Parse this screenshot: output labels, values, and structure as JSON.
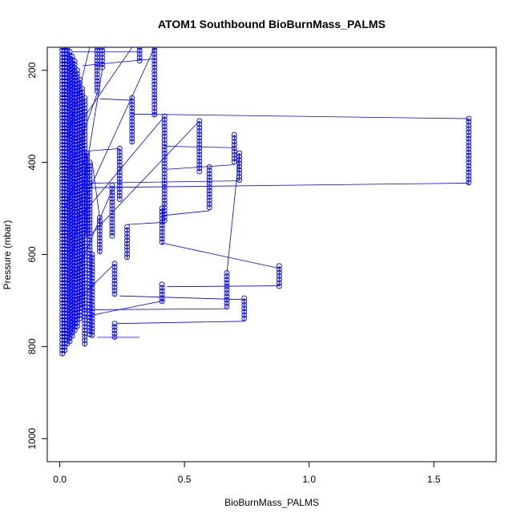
{
  "chart_data": {
    "type": "line",
    "title": "ATOM1 Southbound BioBurnMass_PALMS",
    "xlabel": "BioBurnMass_PALMS",
    "ylabel": "Pressure (mbar)",
    "xlim": [
      -0.05,
      1.75
    ],
    "ylim": [
      1050,
      150
    ],
    "y_reversed": true,
    "xticks": [
      0.0,
      0.5,
      1.0,
      1.5
    ],
    "xtick_labels": [
      "0.0",
      "0.5",
      "1.0",
      "1.5"
    ],
    "yticks": [
      200,
      400,
      600,
      800,
      1000
    ],
    "ytick_labels": [
      "200",
      "400",
      "600",
      "800",
      "1000"
    ],
    "grid": false,
    "legend": "none",
    "series_color": "#0000ff",
    "marker": "open-circle",
    "profiles": [
      {
        "x": 0.01,
        "p_top": 150,
        "p_bottom": 820
      },
      {
        "x": 0.02,
        "p_top": 150,
        "p_bottom": 815
      },
      {
        "x": 0.03,
        "p_top": 150,
        "p_bottom": 800
      },
      {
        "x": 0.04,
        "p_top": 160,
        "p_bottom": 790
      },
      {
        "x": 0.05,
        "p_top": 170,
        "p_bottom": 780
      },
      {
        "x": 0.06,
        "p_top": 180,
        "p_bottom": 770
      },
      {
        "x": 0.07,
        "p_top": 200,
        "p_bottom": 760
      },
      {
        "x": 0.08,
        "p_top": 220,
        "p_bottom": 740
      },
      {
        "x": 0.09,
        "p_top": 240,
        "p_bottom": 720
      },
      {
        "x": 0.1,
        "p_top": 260,
        "p_bottom": 800
      },
      {
        "x": 0.11,
        "p_top": 380,
        "p_bottom": 560
      },
      {
        "x": 0.12,
        "p_top": 400,
        "p_bottom": 780
      },
      {
        "x": 0.13,
        "p_top": 600,
        "p_bottom": 780
      },
      {
        "x": 0.15,
        "p_top": 150,
        "p_bottom": 250
      },
      {
        "x": 0.16,
        "p_top": 520,
        "p_bottom": 600
      },
      {
        "x": 0.17,
        "p_top": 150,
        "p_bottom": 200
      },
      {
        "x": 0.21,
        "p_top": 450,
        "p_bottom": 560
      },
      {
        "x": 0.22,
        "p_top": 620,
        "p_bottom": 690
      },
      {
        "x": 0.22,
        "p_top": 750,
        "p_bottom": 785
      },
      {
        "x": 0.24,
        "p_top": 370,
        "p_bottom": 480
      },
      {
        "x": 0.27,
        "p_top": 540,
        "p_bottom": 610
      },
      {
        "x": 0.29,
        "p_top": 260,
        "p_bottom": 360
      },
      {
        "x": 0.32,
        "p_top": 150,
        "p_bottom": 180
      },
      {
        "x": 0.38,
        "p_top": 150,
        "p_bottom": 300
      },
      {
        "x": 0.41,
        "p_top": 500,
        "p_bottom": 580
      },
      {
        "x": 0.41,
        "p_top": 665,
        "p_bottom": 705
      },
      {
        "x": 0.42,
        "p_top": 300,
        "p_bottom": 530
      },
      {
        "x": 0.56,
        "p_top": 310,
        "p_bottom": 420
      },
      {
        "x": 0.6,
        "p_top": 410,
        "p_bottom": 500
      },
      {
        "x": 0.67,
        "p_top": 640,
        "p_bottom": 720
      },
      {
        "x": 0.7,
        "p_top": 340,
        "p_bottom": 400
      },
      {
        "x": 0.72,
        "p_top": 380,
        "p_bottom": 440
      },
      {
        "x": 0.74,
        "p_top": 695,
        "p_bottom": 745
      },
      {
        "x": 0.88,
        "p_top": 625,
        "p_bottom": 670
      },
      {
        "x": 1.64,
        "p_top": 305,
        "p_bottom": 450
      }
    ],
    "connector_lines": [
      {
        "x1": 0.29,
        "p1": 295,
        "x2": 1.64,
        "p2": 305
      },
      {
        "x1": 0.1,
        "p1": 455,
        "x2": 1.64,
        "p2": 445
      },
      {
        "x1": 0.12,
        "p1": 445,
        "x2": 0.72,
        "p2": 440
      },
      {
        "x1": 0.41,
        "p1": 575,
        "x2": 0.88,
        "p2": 630
      },
      {
        "x1": 0.43,
        "p1": 670,
        "x2": 0.88,
        "p2": 668
      },
      {
        "x1": 0.24,
        "p1": 690,
        "x2": 0.74,
        "p2": 698
      },
      {
        "x1": 0.1,
        "p1": 720,
        "x2": 0.67,
        "p2": 718
      },
      {
        "x1": 0.23,
        "p1": 750,
        "x2": 0.74,
        "p2": 745
      },
      {
        "x1": 0.1,
        "p1": 735,
        "x2": 0.42,
        "p2": 700
      },
      {
        "x1": 0.15,
        "p1": 780,
        "x2": 0.32,
        "p2": 780
      },
      {
        "x1": 0.42,
        "p1": 515,
        "x2": 0.6,
        "p2": 505
      },
      {
        "x1": 0.27,
        "p1": 535,
        "x2": 0.42,
        "p2": 530
      },
      {
        "x1": 0.43,
        "p1": 415,
        "x2": 0.7,
        "p2": 405
      },
      {
        "x1": 0.42,
        "p1": 365,
        "x2": 0.7,
        "p2": 368
      },
      {
        "x1": 0.16,
        "p1": 262,
        "x2": 0.29,
        "p2": 265
      },
      {
        "x1": 0.09,
        "p1": 190,
        "x2": 0.38,
        "p2": 175
      },
      {
        "x1": 0.05,
        "p1": 160,
        "x2": 0.32,
        "p2": 160
      },
      {
        "x1": 0.12,
        "p1": 375,
        "x2": 0.24,
        "p2": 370
      },
      {
        "x1": 0.67,
        "p1": 640,
        "x2": 0.72,
        "p2": 380
      },
      {
        "x1": 0.12,
        "p1": 560,
        "x2": 0.56,
        "p2": 310
      },
      {
        "x1": 0.08,
        "p1": 520,
        "x2": 0.42,
        "p2": 300
      },
      {
        "x1": 0.11,
        "p1": 470,
        "x2": 0.38,
        "p2": 150
      },
      {
        "x1": 0.05,
        "p1": 600,
        "x2": 0.17,
        "p2": 200
      },
      {
        "x1": 0.06,
        "p1": 650,
        "x2": 0.21,
        "p2": 460
      },
      {
        "x1": 0.07,
        "p1": 700,
        "x2": 0.22,
        "p2": 620
      },
      {
        "x1": 0.1,
        "p1": 300,
        "x2": 0.29,
        "p2": 150
      },
      {
        "x1": 0.04,
        "p1": 420,
        "x2": 0.15,
        "p2": 250
      },
      {
        "x1": 0.13,
        "p1": 400,
        "x2": 0.16,
        "p2": 520
      },
      {
        "x1": 0.02,
        "p1": 500,
        "x2": 0.11,
        "p2": 380
      },
      {
        "x1": 0.03,
        "p1": 350,
        "x2": 0.12,
        "p2": 150
      }
    ]
  }
}
